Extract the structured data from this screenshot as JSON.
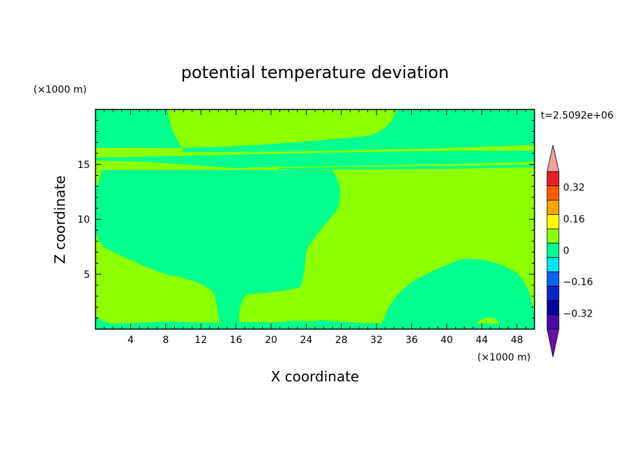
{
  "chart_data": {
    "type": "heatmap",
    "title": "potential temperature deviation",
    "xlabel": "X coordinate",
    "ylabel": "Z coordinate",
    "x_unit": "(×1000 m)",
    "y_unit": "(×1000 m)",
    "time_label": "t=2.5092e+06",
    "xlim": [
      0,
      50
    ],
    "ylim": [
      0,
      20
    ],
    "x_ticks": [
      4,
      8,
      12,
      16,
      20,
      24,
      28,
      32,
      36,
      40,
      44,
      48
    ],
    "y_ticks": [
      5,
      10,
      15
    ],
    "regions": [
      {
        "level": "0 to 0.08",
        "description": "background positive band"
      },
      {
        "level": "-0.08 to 0",
        "description": "upper layer z 16.5-19.8 km near left and right edges"
      },
      {
        "level": "-0.08 to 0",
        "description": "large plume from x 0-28 km, z 0-14.5 km"
      },
      {
        "level": "-0.08 to 0",
        "description": "lower-right dome from x 33-50 km, z 0-6.5 km"
      },
      {
        "level": "-0.08 to 0",
        "description": "thin stratified band near z 14.5-15.5 km"
      }
    ],
    "colorbar": {
      "levels": [
        -0.4,
        -0.32,
        -0.24,
        -0.16,
        -0.08,
        0,
        0.08,
        0.16,
        0.24,
        0.32,
        0.4
      ],
      "colors": [
        "#4a0aa8",
        "#00009c",
        "#0a22c8",
        "#0a64f0",
        "#00e6ff",
        "#00ff8c",
        "#8cff00",
        "#ffff00",
        "#ffa500",
        "#ff5a00",
        "#e62020"
      ],
      "under_color": "#6a10a8",
      "over_color": "#f4a0a0",
      "tick_labels": [
        "0.32",
        "0.16",
        "0",
        "−0.16",
        "−0.32"
      ]
    }
  },
  "colors": {
    "positive": "#8cff00",
    "negative": "#00ff8c"
  }
}
